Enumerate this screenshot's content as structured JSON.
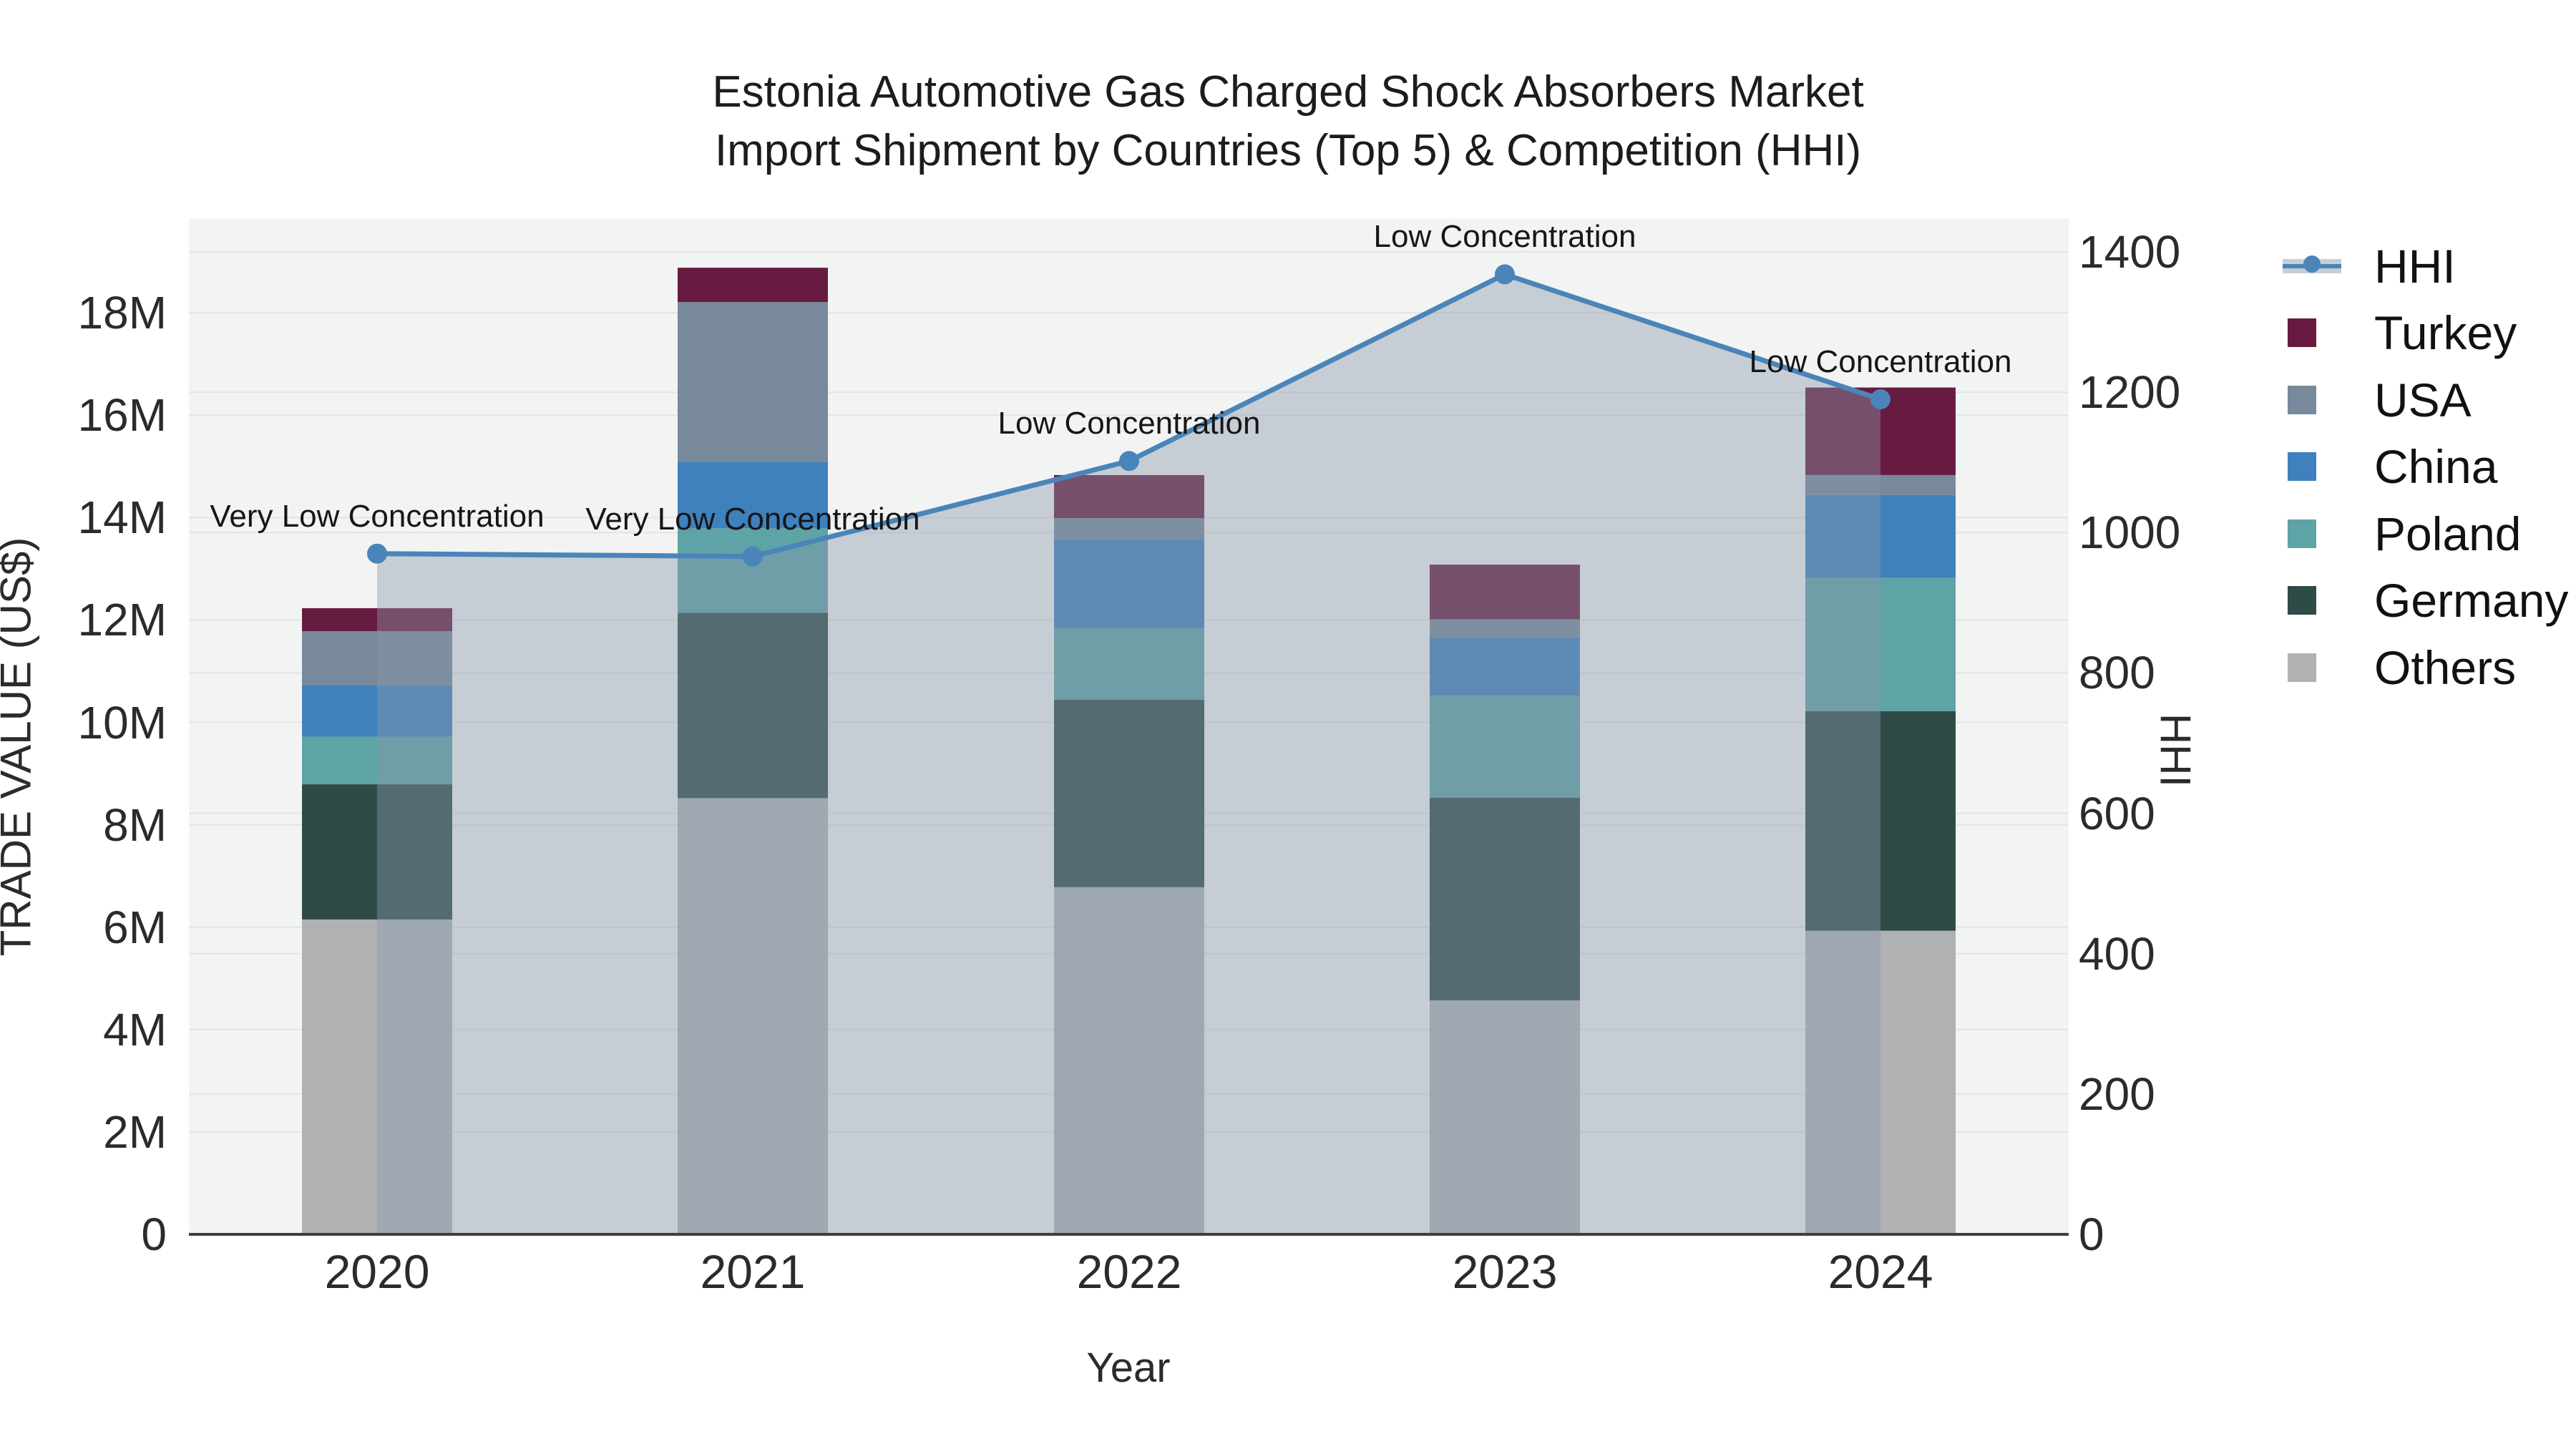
{
  "title": {
    "line1": "Estonia Automotive Gas Charged Shock Absorbers Market",
    "line2": "Import Shipment by Countries (Top 5) & Competition (HHI)"
  },
  "axes": {
    "y_left": {
      "title": "TRADE VALUE (US$)",
      "ticks": [
        {
          "label": "0",
          "value": 0
        },
        {
          "label": "2M",
          "value": 2
        },
        {
          "label": "4M",
          "value": 4
        },
        {
          "label": "6M",
          "value": 6
        },
        {
          "label": "8M",
          "value": 8
        },
        {
          "label": "10M",
          "value": 10
        },
        {
          "label": "12M",
          "value": 12
        },
        {
          "label": "14M",
          "value": 14
        },
        {
          "label": "16M",
          "value": 16
        },
        {
          "label": "18M",
          "value": 18
        }
      ],
      "range_m": [
        0,
        19.85
      ]
    },
    "y_right": {
      "title": "HHI",
      "ticks": [
        {
          "label": "0",
          "value": 0
        },
        {
          "label": "200",
          "value": 200
        },
        {
          "label": "400",
          "value": 400
        },
        {
          "label": "600",
          "value": 600
        },
        {
          "label": "800",
          "value": 800
        },
        {
          "label": "1000",
          "value": 1000
        },
        {
          "label": "1200",
          "value": 1200
        },
        {
          "label": "1400",
          "value": 1400
        }
      ],
      "range": [
        0,
        1448
      ]
    },
    "x": {
      "title": "Year"
    }
  },
  "chart_data": {
    "type": "bar+line",
    "subtype": "stacked bars (left axis, trade value in millions US$) with HHI line on right axis",
    "categories": [
      "2020",
      "2021",
      "2022",
      "2023",
      "2024"
    ],
    "bar_unit": "million US$",
    "series": [
      {
        "name": "Others",
        "color": "#afb1b3",
        "values": [
          6.15,
          8.52,
          6.78,
          4.57,
          5.93
        ]
      },
      {
        "name": "Germany",
        "color": "#2e4b47",
        "values": [
          2.64,
          3.62,
          3.66,
          3.96,
          4.29
        ]
      },
      {
        "name": "Poland",
        "color": "#5ea3a6",
        "values": [
          0.93,
          1.65,
          1.4,
          1.99,
          2.6
        ]
      },
      {
        "name": "China",
        "color": "#3f81bc",
        "values": [
          1.0,
          1.3,
          1.73,
          1.13,
          1.62
        ]
      },
      {
        "name": "USA",
        "color": "#78899b",
        "values": [
          1.06,
          3.12,
          0.42,
          0.36,
          0.39
        ]
      },
      {
        "name": "Turkey",
        "color": "#681b41",
        "values": [
          0.45,
          0.67,
          0.84,
          1.07,
          1.71
        ]
      }
    ],
    "bar_totals": [
      12.23,
      18.88,
      14.83,
      13.08,
      16.54
    ],
    "line": {
      "name": "HHI",
      "color": "#4a85ba",
      "fill_color": "rgba(138,152,172,0.42)",
      "values": [
        970,
        966,
        1102,
        1368,
        1190
      ]
    },
    "annotations": [
      {
        "text": "Very Low Concentration",
        "category": "2020"
      },
      {
        "text": "Very Low Concentration",
        "category": "2021"
      },
      {
        "text": "Low Concentration",
        "category": "2022"
      },
      {
        "text": "Low Concentration",
        "category": "2023"
      },
      {
        "text": "Low Concentration",
        "category": "2024"
      }
    ],
    "layout_hints": {
      "grid": "on (both axes)",
      "legend_position": "right",
      "plot_bg": "#f2f3f3",
      "grid_color": "#e3e4e6",
      "axis_line_color": "#3e3e3e"
    }
  },
  "legend": {
    "items": [
      {
        "label": "HHI",
        "type": "line",
        "color": "#4a85ba"
      },
      {
        "label": "Turkey",
        "type": "swatch",
        "color": "#681b41"
      },
      {
        "label": "USA",
        "type": "swatch",
        "color": "#78899b"
      },
      {
        "label": "China",
        "type": "swatch",
        "color": "#3f81bc"
      },
      {
        "label": "Poland",
        "type": "swatch",
        "color": "#5ea3a6"
      },
      {
        "label": "Germany",
        "type": "swatch",
        "color": "#2e4b47"
      },
      {
        "label": "Others",
        "type": "swatch",
        "color": "#afb1b3"
      }
    ]
  }
}
